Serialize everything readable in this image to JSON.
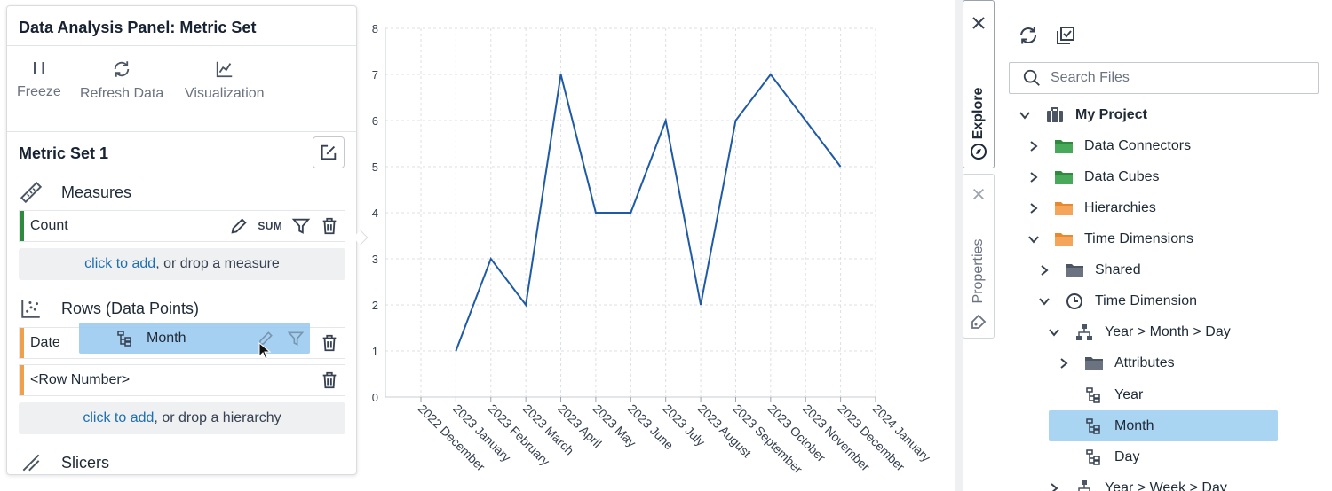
{
  "panel": {
    "title": "Data Analysis Panel: Metric Set",
    "toolbar": [
      {
        "label": "Freeze",
        "icon": "pause-icon"
      },
      {
        "label": "Refresh Data",
        "icon": "refresh-icon"
      },
      {
        "label": "Visualization",
        "icon": "line-chart-icon"
      }
    ],
    "metric_set_title": "Metric Set 1",
    "measures": {
      "label": "Measures",
      "items": [
        {
          "name": "Count",
          "aggregation": "SUM",
          "color": "#2e8b3d"
        }
      ],
      "add_link": "click to add",
      "add_rest": ", or drop a measure"
    },
    "rows": {
      "label": "Rows (Data Points)",
      "items": [
        {
          "name": "Date",
          "color": "#f0a04b"
        },
        {
          "name": "<Row Number>",
          "color": "#f0a04b"
        }
      ],
      "add_link": "click to add",
      "add_rest": ", or drop a hierarchy"
    },
    "drag_chip_label": "Month",
    "slicers_label": "Slicers"
  },
  "chart_data": {
    "type": "line",
    "categories": [
      "2022 December",
      "2023 January",
      "2023 February",
      "2023 March",
      "2023 April",
      "2023 May",
      "2023 June",
      "2023 July",
      "2023 August",
      "2023 September",
      "2023 October",
      "2023 November",
      "2023 December",
      "2024 January"
    ],
    "values": [
      null,
      1,
      3,
      2,
      7,
      4,
      4,
      6,
      2,
      6,
      7,
      6,
      5,
      null
    ],
    "ylim": [
      0,
      8
    ],
    "yticks": [
      0,
      1,
      2,
      3,
      4,
      5,
      6,
      7,
      8
    ],
    "grid": true,
    "line_color": "#1f5aa6"
  },
  "side_tabs": {
    "explore": "Explore",
    "properties": "Properties"
  },
  "explorer": {
    "search_placeholder": "Search Files",
    "tree": [
      {
        "label": "My Project",
        "icon": "briefcase-icon",
        "chevron": "down"
      },
      {
        "label": "Data Connectors",
        "icon": "folder-green-icon",
        "chevron": "right"
      },
      {
        "label": "Data Cubes",
        "icon": "folder-green-icon",
        "chevron": "right"
      },
      {
        "label": "Hierarchies",
        "icon": "folder-orange-icon",
        "chevron": "right"
      },
      {
        "label": "Time Dimensions",
        "icon": "folder-orange-icon",
        "chevron": "down"
      },
      {
        "label": "Shared",
        "icon": "folder-gray-icon",
        "chevron": "right"
      },
      {
        "label": "Time Dimension",
        "icon": "clock-icon",
        "chevron": "down"
      },
      {
        "label": "Year > Month > Day",
        "icon": "hierarchy-icon",
        "chevron": "down"
      },
      {
        "label": "Attributes",
        "icon": "folder-gray-icon",
        "chevron": "right"
      },
      {
        "label": "Year",
        "icon": "level-icon",
        "chevron": "none"
      },
      {
        "label": "Month",
        "icon": "level-icon",
        "chevron": "none",
        "selected": true
      },
      {
        "label": "Day",
        "icon": "level-icon",
        "chevron": "none"
      },
      {
        "label": "Year > Week > Day",
        "icon": "hierarchy-icon",
        "chevron": "right"
      }
    ]
  }
}
